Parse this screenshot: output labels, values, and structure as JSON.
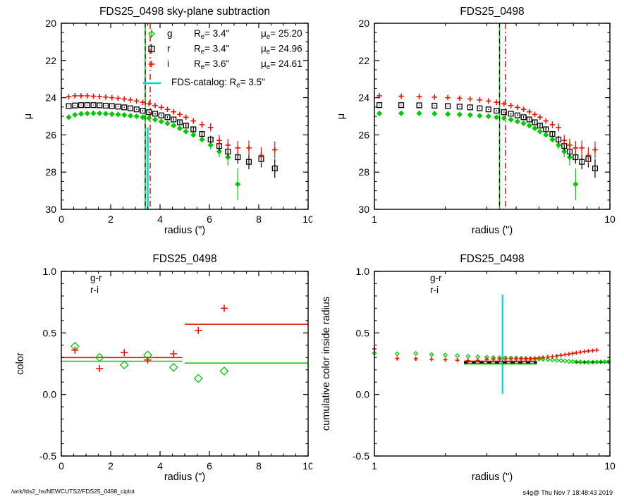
{
  "page": {
    "footer_left": "/wrk/fds2_hs/NEWCUTS2/FDS25_0498_ciplot",
    "footer_right": "s4g@  Thu Nov  7 18:48:43 2019",
    "background": "#ffffff"
  },
  "colors": {
    "g": "#00cc00",
    "r": "#000000",
    "i": "#ee1100",
    "catalog": "#00d8dc"
  },
  "chart_data": [
    {
      "name": "surface-brightness-linear",
      "type": "scatter",
      "title": "FDS25_0498 sky-plane subtraction",
      "xlabel": "radius (\")",
      "ylabel": "μ",
      "xscale": "linear",
      "xlim": [
        0,
        10
      ],
      "ylim_top": 20,
      "ylim_bottom": 30,
      "xticks": {
        "major": [
          0,
          2,
          4,
          6,
          8,
          10
        ],
        "labels": [
          "0",
          "2",
          "4",
          "6",
          "8",
          "10"
        ],
        "minor_step": 0.5
      },
      "yticks": {
        "major": [
          20,
          22,
          24,
          26,
          28,
          30
        ],
        "labels": [
          "20",
          "22",
          "24",
          "26",
          "28",
          "30"
        ],
        "minor_step": 0.5
      },
      "series": [
        {
          "name": "g",
          "symbol": "diamond",
          "filled": true,
          "color": "#00cc00",
          "size": 3.2,
          "x": [
            0.3,
            0.55,
            0.8,
            1.05,
            1.3,
            1.55,
            1.8,
            2.05,
            2.3,
            2.55,
            2.8,
            3.05,
            3.3,
            3.55,
            3.8,
            4.05,
            4.3,
            4.55,
            4.8,
            5.05,
            5.35,
            5.7,
            6.05,
            6.4,
            6.75,
            7.15
          ],
          "y": [
            25.05,
            24.92,
            24.87,
            24.85,
            24.84,
            24.84,
            24.86,
            24.88,
            24.9,
            24.93,
            24.97,
            25.0,
            25.05,
            25.1,
            25.18,
            25.28,
            25.38,
            25.5,
            25.65,
            25.82,
            26.0,
            26.25,
            26.55,
            26.9,
            27.2,
            28.65
          ],
          "err": [
            0.02,
            0.02,
            0.02,
            0.02,
            0.02,
            0.02,
            0.02,
            0.02,
            0.02,
            0.03,
            0.03,
            0.03,
            0.03,
            0.04,
            0.04,
            0.05,
            0.05,
            0.06,
            0.08,
            0.1,
            0.13,
            0.16,
            0.22,
            0.3,
            0.45,
            0.85
          ]
        },
        {
          "name": "r",
          "symbol": "square",
          "filled": false,
          "color": "#000000",
          "size": 3.4,
          "x": [
            0.3,
            0.55,
            0.8,
            1.05,
            1.3,
            1.55,
            1.8,
            2.05,
            2.3,
            2.55,
            2.8,
            3.05,
            3.3,
            3.55,
            3.8,
            4.05,
            4.3,
            4.55,
            4.8,
            5.05,
            5.35,
            5.7,
            6.05,
            6.4,
            6.75,
            7.15,
            7.6,
            8.1,
            8.65
          ],
          "y": [
            24.45,
            24.42,
            24.4,
            24.4,
            24.4,
            24.41,
            24.43,
            24.45,
            24.48,
            24.52,
            24.57,
            24.63,
            24.7,
            24.78,
            24.86,
            24.95,
            25.05,
            25.17,
            25.32,
            25.5,
            25.7,
            25.95,
            26.25,
            26.6,
            26.9,
            27.2,
            27.45,
            27.3,
            27.8
          ],
          "err": [
            0.02,
            0.02,
            0.02,
            0.02,
            0.02,
            0.02,
            0.02,
            0.02,
            0.02,
            0.03,
            0.03,
            0.03,
            0.04,
            0.04,
            0.05,
            0.05,
            0.06,
            0.07,
            0.09,
            0.11,
            0.13,
            0.16,
            0.2,
            0.25,
            0.3,
            0.35,
            0.4,
            0.45,
            0.5
          ]
        },
        {
          "name": "i",
          "symbol": "plus",
          "filled": false,
          "color": "#ee1100",
          "size": 3.8,
          "x": [
            0.3,
            0.55,
            0.8,
            1.05,
            1.3,
            1.55,
            1.8,
            2.05,
            2.3,
            2.55,
            2.8,
            3.05,
            3.3,
            3.55,
            3.8,
            4.05,
            4.3,
            4.55,
            4.8,
            5.05,
            5.35,
            5.7,
            6.05,
            6.4,
            6.75,
            7.15,
            7.6,
            8.1,
            8.65
          ],
          "y": [
            23.95,
            23.9,
            23.9,
            23.9,
            23.92,
            23.94,
            23.97,
            24.0,
            24.03,
            24.07,
            24.12,
            24.18,
            24.25,
            24.33,
            24.42,
            24.52,
            24.63,
            24.76,
            24.9,
            25.05,
            25.25,
            25.45,
            25.6,
            26.3,
            26.55,
            26.7,
            26.7,
            27.1,
            26.8
          ],
          "err": [
            0.02,
            0.02,
            0.02,
            0.02,
            0.02,
            0.02,
            0.02,
            0.02,
            0.03,
            0.03,
            0.03,
            0.03,
            0.04,
            0.04,
            0.05,
            0.06,
            0.07,
            0.08,
            0.1,
            0.12,
            0.15,
            0.18,
            0.22,
            0.3,
            0.35,
            0.38,
            0.4,
            0.45,
            0.45
          ]
        }
      ],
      "vlines": [
        {
          "x": 3.4,
          "color": "#00cc00",
          "style": "solid",
          "width": 1.6
        },
        {
          "x": 3.4,
          "color": "#000000",
          "style": "dashed",
          "width": 1.2
        },
        {
          "x": 3.5,
          "color": "#00d8dc",
          "style": "solid",
          "width": 2.6,
          "y_from": 25.6,
          "y_to": 30
        },
        {
          "x": 3.6,
          "color": "#ee1100",
          "style": "dashdot",
          "width": 1.5
        }
      ],
      "legend": {
        "re_prefix": "R",
        "mue_prefix": "μ",
        "sub": "e",
        "rows": [
          {
            "symbol": "diamond",
            "color": "#00cc00",
            "band": "g",
            "re": "3.4\"",
            "mue": "25.20"
          },
          {
            "symbol": "square",
            "color": "#000000",
            "band": "r",
            "re": "3.4\"",
            "mue": "24.96"
          },
          {
            "symbol": "plus",
            "color": "#ee1100",
            "band": "i",
            "re": "3.6\"",
            "mue": "24.61"
          }
        ],
        "catalog": {
          "color": "#00d8dc",
          "text": "FDS-catalog: R",
          "value": "3.5\""
        }
      }
    },
    {
      "name": "surface-brightness-log",
      "type": "scatter",
      "title": "FDS25_0498",
      "xlabel": "radius (\")",
      "ylabel": "μ",
      "xscale": "log",
      "xlim": [
        1,
        10
      ],
      "ylim_top": 20,
      "ylim_bottom": 30,
      "xticks": {
        "major": [
          1,
          10
        ],
        "labels": [
          "1",
          "10"
        ],
        "minor": [
          2,
          3,
          4,
          5,
          6,
          7,
          8,
          9
        ]
      },
      "yticks": {
        "major": [
          20,
          22,
          24,
          26,
          28,
          30
        ],
        "labels": [
          "20",
          "22",
          "24",
          "26",
          "28",
          "30"
        ],
        "minor_step": 0.5
      },
      "series_ref": 0,
      "vlines": [
        {
          "x": 3.4,
          "color": "#00cc00",
          "style": "solid",
          "width": 1.6
        },
        {
          "x": 3.4,
          "color": "#000000",
          "style": "dashed",
          "width": 1.2
        },
        {
          "x": 3.6,
          "color": "#ee1100",
          "style": "dashdot",
          "width": 1.5
        }
      ]
    },
    {
      "name": "color-profile",
      "type": "scatter",
      "title": "FDS25_0498",
      "xlabel": "radius (\")",
      "ylabel": "color",
      "xscale": "linear",
      "xlim": [
        0,
        10
      ],
      "ylim_top": 1.0,
      "ylim_bottom": -0.5,
      "xticks": {
        "major": [
          0,
          2,
          4,
          6,
          8,
          10
        ],
        "labels": [
          "0",
          "2",
          "4",
          "6",
          "8",
          "10"
        ],
        "minor_step": 0.5
      },
      "yticks": {
        "major": [
          -0.5,
          0,
          0.5,
          1
        ],
        "labels": [
          "-0.5",
          "0.0",
          "0.5",
          "1.0"
        ],
        "minor_step": 0.1
      },
      "series": [
        {
          "name": "g-r",
          "symbol": "diamond",
          "filled": false,
          "color": "#00cc00",
          "size": 5.5,
          "x": [
            0.55,
            1.55,
            2.55,
            3.5,
            4.55,
            5.55,
            6.6
          ],
          "y": [
            0.39,
            0.3,
            0.24,
            0.32,
            0.22,
            0.13,
            0.19
          ]
        },
        {
          "name": "r-i",
          "symbol": "plus",
          "filled": false,
          "color": "#ee1100",
          "size": 5,
          "x": [
            0.55,
            1.55,
            2.55,
            3.5,
            4.55,
            5.55,
            6.6
          ],
          "y": [
            0.36,
            0.21,
            0.34,
            0.28,
            0.33,
            0.52,
            0.7
          ]
        }
      ],
      "segments": [
        {
          "color": "#ee1100",
          "y": 0.3,
          "x1": 0,
          "x2": 4.9,
          "width": 1.6
        },
        {
          "color": "#ee1100",
          "y": 0.57,
          "x1": 5.0,
          "x2": 10,
          "width": 1.6
        },
        {
          "color": "#00cc00",
          "y": 0.27,
          "x1": 0,
          "x2": 4.9,
          "width": 1.6
        },
        {
          "color": "#00cc00",
          "y": 0.255,
          "x1": 5.0,
          "x2": 10,
          "width": 1.6
        }
      ],
      "inset_legend": {
        "items": [
          {
            "label": "g-r",
            "color": "#00cc00"
          },
          {
            "label": "r-i",
            "color": "#ee1100"
          }
        ]
      }
    },
    {
      "name": "cumulative-color",
      "type": "scatter",
      "title": "FDS25_0498",
      "xlabel": "radius (\")",
      "ylabel": "cumulative color inside radius",
      "xscale": "log",
      "xlim": [
        1,
        10
      ],
      "ylim_top": 1.0,
      "ylim_bottom": -0.5,
      "xticks": {
        "major": [
          1,
          10
        ],
        "labels": [
          "1",
          "10"
        ],
        "minor": [
          2,
          3,
          4,
          5,
          6,
          7,
          8,
          9
        ]
      },
      "yticks": {
        "major": [
          -0.5,
          0,
          0.5,
          1
        ],
        "labels": [
          "-0.5",
          "0.0",
          "0.5",
          "1.0"
        ],
        "minor_step": 0.1
      },
      "series": [
        {
          "name": "g-r",
          "symbol": "diamond",
          "filled": false,
          "color": "#00cc00",
          "size": 2.6,
          "x": [
            1.0,
            1.25,
            1.5,
            1.75,
            2.0,
            2.25,
            2.5,
            2.75,
            3.0,
            3.2,
            3.4,
            3.6,
            3.8,
            4.0,
            4.2,
            4.4,
            4.6,
            4.8,
            5.0,
            5.2,
            5.45,
            5.7,
            5.95,
            6.2,
            6.45,
            6.7,
            6.95,
            7.2,
            7.5,
            7.8,
            8.1,
            8.45,
            8.8,
            9.15,
            9.5,
            9.85
          ],
          "y": [
            0.335,
            0.33,
            0.333,
            0.325,
            0.32,
            0.315,
            0.31,
            0.306,
            0.302,
            0.3,
            0.298,
            0.297,
            0.296,
            0.295,
            0.293,
            0.292,
            0.291,
            0.29,
            0.288,
            0.286,
            0.284,
            0.281,
            0.278,
            0.275,
            0.272,
            0.269,
            0.267,
            0.265,
            0.263,
            0.262,
            0.262,
            0.262,
            0.263,
            0.264,
            0.265,
            0.265
          ]
        },
        {
          "name": "r-i",
          "symbol": "plus",
          "filled": false,
          "color": "#ee1100",
          "size": 3,
          "x": [
            1.0,
            1.25,
            1.5,
            1.75,
            2.0,
            2.25,
            2.5,
            2.75,
            3.0,
            3.2,
            3.4,
            3.6,
            3.8,
            4.0,
            4.2,
            4.4,
            4.6,
            4.8,
            5.0,
            5.2,
            5.45,
            5.7,
            5.95,
            6.2,
            6.45,
            6.7,
            6.95,
            7.2,
            7.5,
            7.8,
            8.1,
            8.45,
            8.8
          ],
          "y": [
            0.37,
            0.292,
            0.29,
            0.286,
            0.282,
            0.278,
            0.275,
            0.276,
            0.285,
            0.287,
            0.288,
            0.288,
            0.289,
            0.289,
            0.29,
            0.291,
            0.292,
            0.294,
            0.297,
            0.3,
            0.304,
            0.308,
            0.313,
            0.318,
            0.323,
            0.328,
            0.333,
            0.338,
            0.344,
            0.349,
            0.353,
            0.356,
            0.36
          ]
        }
      ],
      "vlines": [
        {
          "x": 3.5,
          "color": "#00d8dc",
          "style": "solid",
          "width": 2.2,
          "y_from": 0.005,
          "y_to": 0.81
        }
      ],
      "segments": [
        {
          "color": "#ee1100",
          "y": 0.268,
          "x1": 2.4,
          "x2": 4.9,
          "width": 2.4
        },
        {
          "color": "#00cc00",
          "y": 0.25,
          "x1": 2.4,
          "x2": 4.9,
          "width": 2.4
        },
        {
          "color": "#000000",
          "y": 0.259,
          "x1": 2.4,
          "x2": 4.9,
          "width": 2.4,
          "style": "dashed"
        },
        {
          "color": "#00cc00",
          "y": 0.262,
          "x1": 7.15,
          "x2": 10,
          "width": 2.4
        },
        {
          "color": "#000000",
          "y": 0.262,
          "x1": 7.15,
          "x2": 10,
          "width": 2.4,
          "style": "dashed"
        }
      ],
      "inset_legend": {
        "items": [
          {
            "label": "g-r",
            "color": "#00cc00"
          },
          {
            "label": "r-i",
            "color": "#ee1100"
          }
        ]
      }
    }
  ]
}
